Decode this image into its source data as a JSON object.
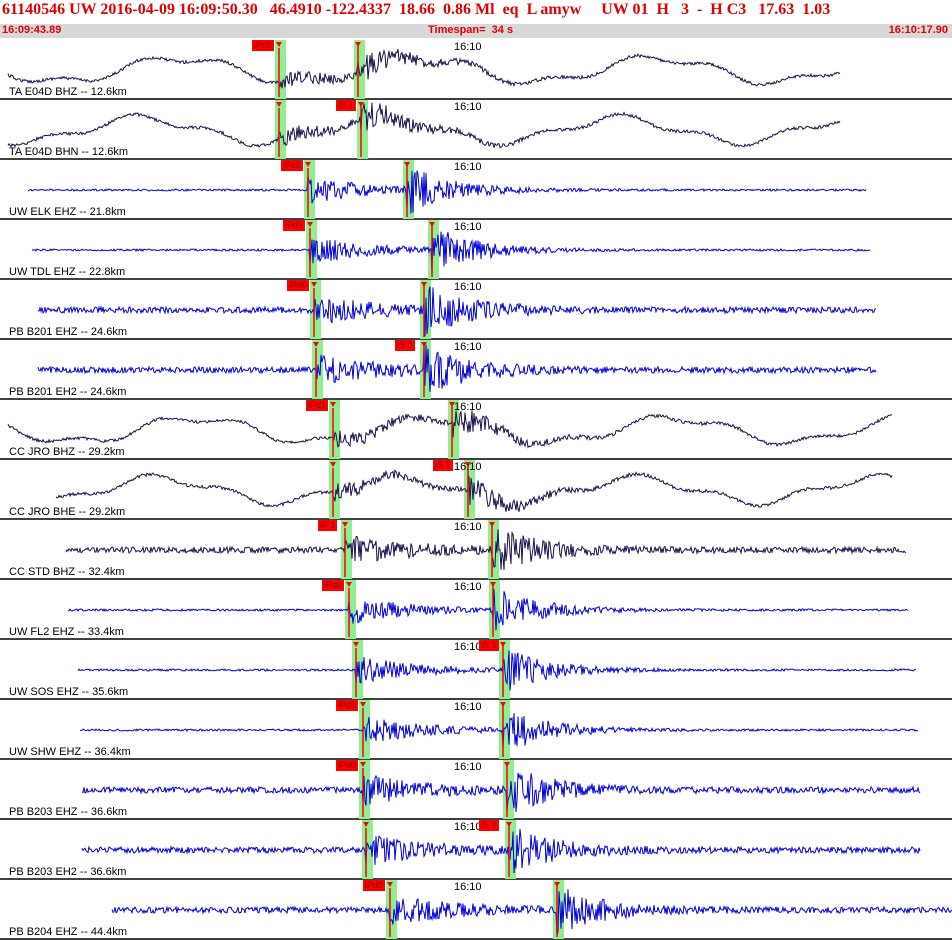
{
  "header": {
    "title": "61140546 UW 2016-04-09 16:09:50.30   46.4910 -122.4337  18.66  0.86 Ml  eq  L amyw     UW 01  H   3  -  H C3   17.63  1.03",
    "start_time": "16:09:43.89",
    "timespan": "Timespan=  34 s",
    "end_time": "16:10:17.90"
  },
  "colors": {
    "header_text": "#e00000",
    "header_band": "#d8d8d8",
    "blue_trace": "#0000dd",
    "dark_trace": "#1a1050",
    "pick": "#ff0000",
    "pick_window": "#90ee90"
  },
  "minute_mark": "16:10",
  "traces": [
    {
      "label": "TA E04D BHZ -- 12.6km",
      "color": "dark",
      "style": "broadband",
      "pick_label": "iPc0"
    },
    {
      "label": "TA E04D BHN -- 12.6km",
      "color": "dark",
      "style": "broadband",
      "pick_label": "iS 1"
    },
    {
      "label": "UW ELK EHZ -- 21.8km",
      "color": "blue",
      "style": "short",
      "pick_label": "iPc0"
    },
    {
      "label": "UW TDL EHZ -- 22.8km",
      "color": "blue",
      "style": "short",
      "pick_label": "iPd1"
    },
    {
      "label": "PB B201 EHZ -- 24.6km",
      "color": "blue",
      "style": "noisy",
      "pick_label": "iPd0"
    },
    {
      "label": "PB B201 EH2 -- 24.6km",
      "color": "blue",
      "style": "noisy",
      "pick_label": "iS 0"
    },
    {
      "label": "CC JRO BHZ -- 29.2km",
      "color": "dark",
      "style": "broadband",
      "pick_label": "iPd1"
    },
    {
      "label": "CC JRO BHE -- 29.2km",
      "color": "dark",
      "style": "broadband",
      "pick_label": "iS 1"
    },
    {
      "label": "CC STD BHZ -- 32.4km",
      "color": "dark",
      "style": "noisy",
      "pick_label": "iP 1"
    },
    {
      "label": "UW FL2 EHZ -- 33.4km",
      "color": "blue",
      "style": "short",
      "pick_label": "iPd0"
    },
    {
      "label": "UW SOS EHZ -- 35.6km",
      "color": "blue",
      "style": "short",
      "pick_label": "iS 1"
    },
    {
      "label": "UW SHW EHZ -- 36.4km",
      "color": "blue",
      "style": "short",
      "pick_label": "iPd1"
    },
    {
      "label": "PB B203 EHZ -- 36.6km",
      "color": "blue",
      "style": "noisy",
      "pick_label": "iPd0"
    },
    {
      "label": "PB B203 EH2 -- 36.6km",
      "color": "blue",
      "style": "noisy",
      "pick_label": "iS 1"
    },
    {
      "label": "PB B204 EHZ -- 44.4km",
      "color": "blue",
      "style": "noisy",
      "pick_label": "iPd0"
    }
  ]
}
